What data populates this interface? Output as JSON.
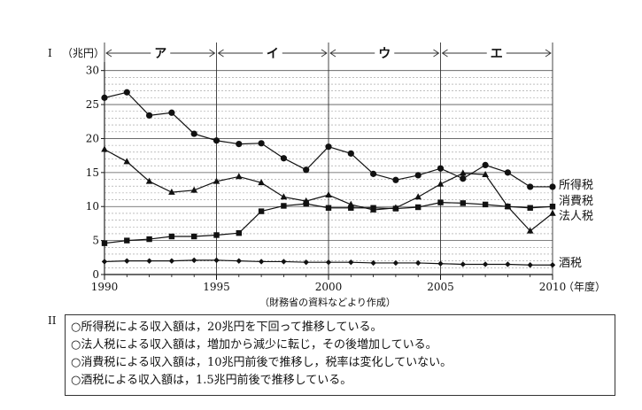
{
  "section_one_label": "I",
  "section_two_label": "II",
  "chart_data": {
    "type": "line",
    "yunit": "（兆円）",
    "xunit": "（年度）",
    "source": "（財務省の資料などより作成）",
    "periods": [
      "ア",
      "イ",
      "ウ",
      "エ"
    ],
    "period_bounds": [
      1990,
      1995,
      2000,
      2005,
      2010
    ],
    "x": [
      1990,
      1991,
      1992,
      1993,
      1994,
      1995,
      1996,
      1997,
      1998,
      1999,
      2000,
      2001,
      2002,
      2003,
      2004,
      2005,
      2006,
      2007,
      2008,
      2009,
      2010
    ],
    "xticks": [
      1990,
      1995,
      2000,
      2005,
      2010
    ],
    "yticks": [
      0,
      5,
      10,
      15,
      20,
      25,
      30
    ],
    "ylim": [
      0,
      31
    ],
    "grid": "horizontal dashed every 1",
    "series": [
      {
        "name": "所得税",
        "marker": "circle",
        "values": [
          26.0,
          26.8,
          23.4,
          23.8,
          20.7,
          19.7,
          19.2,
          19.3,
          17.1,
          15.4,
          18.8,
          17.8,
          14.8,
          13.9,
          14.6,
          15.6,
          14.1,
          16.1,
          15.0,
          12.9,
          12.9
        ]
      },
      {
        "name": "消費税",
        "marker": "square",
        "values": [
          4.6,
          5.0,
          5.2,
          5.6,
          5.6,
          5.8,
          6.1,
          9.3,
          10.1,
          10.4,
          9.8,
          9.8,
          9.8,
          9.7,
          9.9,
          10.6,
          10.5,
          10.3,
          10.0,
          9.8,
          10.0
        ]
      },
      {
        "name": "法人税",
        "marker": "triangle",
        "values": [
          18.4,
          16.6,
          13.7,
          12.1,
          12.4,
          13.7,
          14.4,
          13.5,
          11.4,
          10.8,
          11.7,
          10.3,
          9.5,
          9.8,
          11.4,
          13.3,
          14.9,
          14.7,
          10.0,
          6.4,
          9.0
        ]
      },
      {
        "name": "酒税",
        "marker": "diamond",
        "values": [
          1.9,
          2.0,
          2.0,
          2.0,
          2.1,
          2.1,
          2.0,
          1.9,
          1.9,
          1.8,
          1.8,
          1.8,
          1.7,
          1.7,
          1.7,
          1.6,
          1.5,
          1.5,
          1.5,
          1.4,
          1.4
        ]
      }
    ]
  },
  "statements": [
    "○所得税による収入額は，20兆円を下回って推移している。",
    "○法人税による収入額は，増加から減少に転じ，その後増加している。",
    "○消費税による収入額は，10兆円前後で推移し，税率は変化していない。",
    "○酒税による収入額は，1.5兆円前後で推移している。"
  ]
}
